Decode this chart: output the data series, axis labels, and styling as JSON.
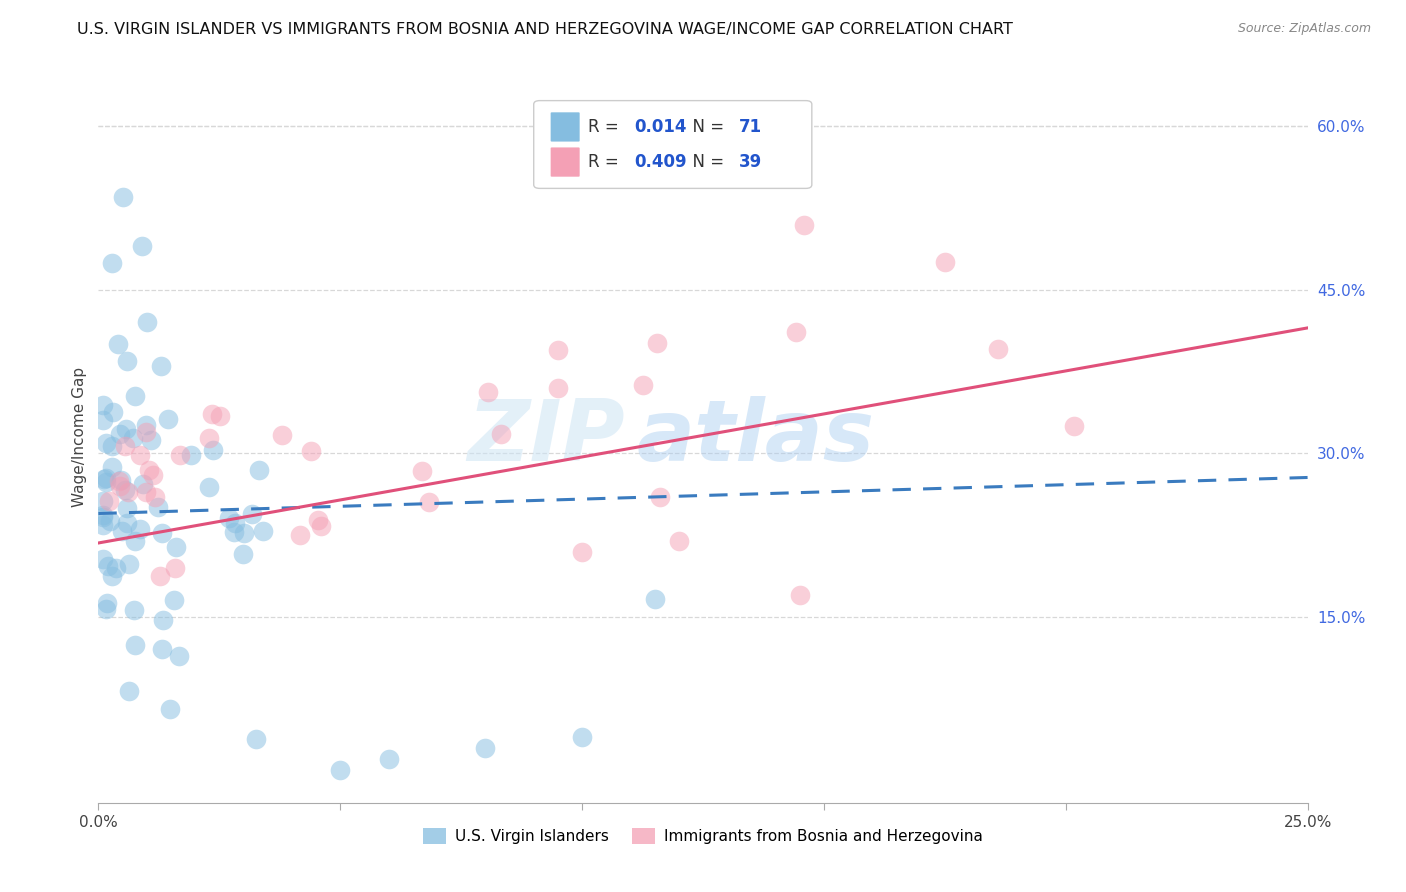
{
  "title": "U.S. VIRGIN ISLANDER VS IMMIGRANTS FROM BOSNIA AND HERZEGOVINA WAGE/INCOME GAP CORRELATION CHART",
  "source": "Source: ZipAtlas.com",
  "ylabel": "Wage/Income Gap",
  "xlim": [
    0.0,
    0.25
  ],
  "ylim": [
    -0.02,
    0.65
  ],
  "yticks_right": [
    0.15,
    0.3,
    0.45,
    0.6
  ],
  "ytick_right_labels": [
    "15.0%",
    "30.0%",
    "45.0%",
    "60.0%"
  ],
  "background_color": "#ffffff",
  "grid_color": "#d8d8d8",
  "blue_color": "#85bde0",
  "pink_color": "#f4a0b5",
  "blue_line_color": "#3a7bbf",
  "pink_line_color": "#e0507a",
  "legend_R1": "0.014",
  "legend_N1": "71",
  "legend_R2": "0.409",
  "legend_N2": "39",
  "label1": "U.S. Virgin Islanders",
  "label2": "Immigrants from Bosnia and Herzegovina",
  "watermark_zip": "ZIP",
  "watermark_atlas": "atlas",
  "blue_line_x": [
    0.0,
    0.25
  ],
  "blue_line_y": [
    0.245,
    0.278
  ],
  "pink_line_x": [
    0.0,
    0.25
  ],
  "pink_line_y": [
    0.218,
    0.415
  ]
}
